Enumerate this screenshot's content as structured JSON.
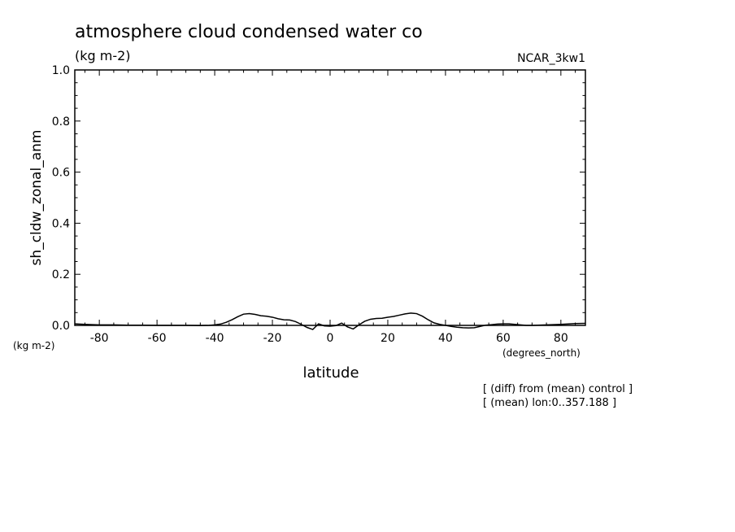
{
  "chart_data": {
    "type": "line",
    "title": "atmosphere cloud condensed water co",
    "units": "(kg m-2)",
    "model": "NCAR_3kw1",
    "ylabel": "sh_cldw_zonal_anm",
    "y_units": "(kg m-2)",
    "xlabel": "latitude",
    "x_units": "(degrees_north)",
    "xlim": [
      -88.5,
      88.5
    ],
    "ylim": [
      0.0,
      1.0
    ],
    "x_ticks": [
      -80,
      -60,
      -40,
      -20,
      0,
      20,
      40,
      60,
      80
    ],
    "y_ticks": [
      0.0,
      0.2,
      0.4,
      0.6,
      0.8,
      1.0
    ],
    "x_tick_labels": [
      "-80",
      "-60",
      "-40",
      "-20",
      "0",
      "20",
      "40",
      "60",
      "80"
    ],
    "y_tick_labels": [
      "0.0",
      "0.2",
      "0.4",
      "0.6",
      "0.8",
      "1.0"
    ],
    "grid": false,
    "notes": [
      "[ (diff) from (mean) control ]",
      "[ (mean) lon:0..357.188 ]"
    ],
    "series": [
      {
        "x": [
          -88.5,
          -85,
          -80,
          -75,
          -70,
          -65,
          -60,
          -55,
          -50,
          -45,
          -42,
          -40,
          -38,
          -36,
          -34,
          -32,
          -30,
          -28,
          -26,
          -24,
          -22,
          -20,
          -18,
          -16,
          -14,
          -12,
          -10,
          -8,
          -6,
          -4,
          -2,
          0,
          2,
          4,
          6,
          8,
          10,
          12,
          14,
          16,
          18,
          20,
          22,
          24,
          26,
          28,
          30,
          32,
          34,
          36,
          38,
          40,
          42,
          44,
          46,
          48,
          50,
          52,
          54,
          56,
          58,
          60,
          62,
          64,
          66,
          68,
          70,
          75,
          80,
          85,
          88.5
        ],
        "y": [
          0.006,
          0.004,
          0.002,
          0.002,
          0.001,
          0.001,
          0.0,
          0.0,
          0.0,
          -0.001,
          0.0,
          0.002,
          0.005,
          0.012,
          0.022,
          0.034,
          0.044,
          0.046,
          0.043,
          0.038,
          0.036,
          0.032,
          0.026,
          0.022,
          0.021,
          0.015,
          0.004,
          -0.008,
          -0.016,
          0.006,
          -0.002,
          -0.003,
          -0.001,
          0.009,
          -0.006,
          -0.014,
          0.002,
          0.016,
          0.024,
          0.027,
          0.028,
          0.032,
          0.035,
          0.04,
          0.045,
          0.048,
          0.046,
          0.036,
          0.022,
          0.01,
          0.004,
          0.0,
          -0.004,
          -0.007,
          -0.009,
          -0.01,
          -0.009,
          -0.004,
          0.001,
          0.003,
          0.005,
          0.006,
          0.006,
          0.004,
          0.002,
          0.0,
          0.0,
          0.002,
          0.004,
          0.007,
          0.008
        ]
      }
    ]
  }
}
